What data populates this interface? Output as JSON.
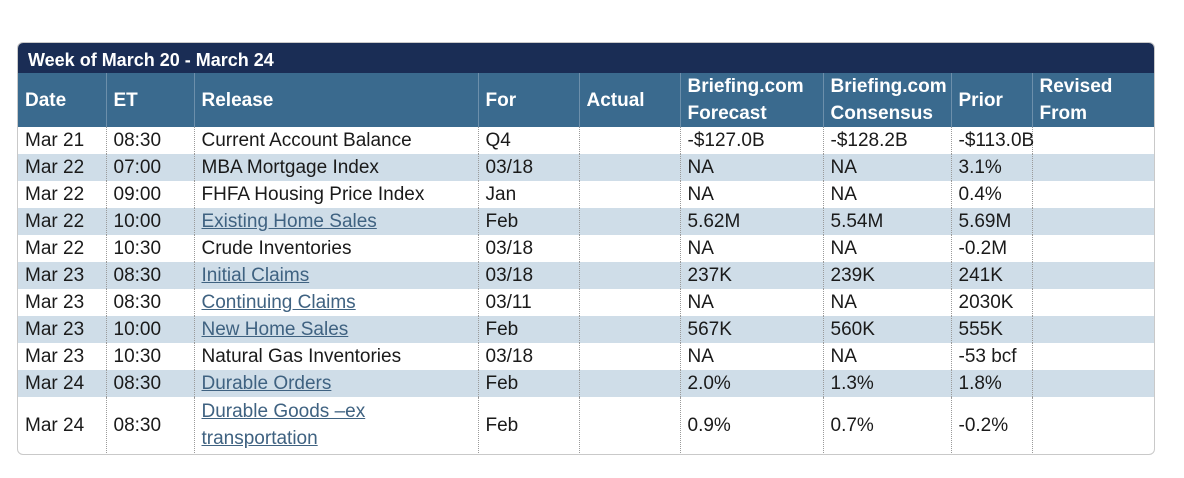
{
  "calendar": {
    "week_title": "Week of March 20 - March 24",
    "headers": {
      "date": "Date",
      "et": "ET",
      "release": "Release",
      "for": "For",
      "actual": "Actual",
      "forecast_line1": "Briefing.com",
      "forecast_line2": "Forecast",
      "consensus_line1": "Briefing.com",
      "consensus_line2": "Consensus",
      "prior": "Prior",
      "revised_line1": "Revised",
      "revised_line2": "From"
    },
    "rows": [
      {
        "date": "Mar 21",
        "et": "08:30",
        "release": "Current Account Balance",
        "link": false,
        "for": "Q4",
        "actual": "",
        "forecast": "-$127.0B",
        "consensus": "-$128.2B",
        "prior": "-$113.0B",
        "revised": ""
      },
      {
        "date": "Mar 22",
        "et": "07:00",
        "release": "MBA Mortgage Index",
        "link": false,
        "for": "03/18",
        "actual": "",
        "forecast": "NA",
        "consensus": "NA",
        "prior": "3.1%",
        "revised": ""
      },
      {
        "date": "Mar 22",
        "et": "09:00",
        "release": "FHFA Housing Price Index",
        "link": false,
        "for": "Jan",
        "actual": "",
        "forecast": "NA",
        "consensus": "NA",
        "prior": "0.4%",
        "revised": ""
      },
      {
        "date": "Mar 22",
        "et": "10:00",
        "release": "Existing Home Sales",
        "link": true,
        "for": "Feb",
        "actual": "",
        "forecast": "5.62M",
        "consensus": "5.54M",
        "prior": "5.69M",
        "revised": ""
      },
      {
        "date": "Mar 22",
        "et": "10:30",
        "release": "Crude Inventories",
        "link": false,
        "for": "03/18",
        "actual": "",
        "forecast": "NA",
        "consensus": "NA",
        "prior": "-0.2M",
        "revised": ""
      },
      {
        "date": "Mar 23",
        "et": "08:30",
        "release": "Initial Claims",
        "link": true,
        "for": "03/18",
        "actual": "",
        "forecast": "237K",
        "consensus": "239K",
        "prior": "241K",
        "revised": ""
      },
      {
        "date": "Mar 23",
        "et": "08:30",
        "release": "Continuing Claims",
        "link": true,
        "for": "03/11",
        "actual": "",
        "forecast": "NA",
        "consensus": "NA",
        "prior": "2030K",
        "revised": ""
      },
      {
        "date": "Mar 23",
        "et": "10:00",
        "release": "New Home Sales",
        "link": true,
        "for": "Feb",
        "actual": "",
        "forecast": "567K",
        "consensus": "560K",
        "prior": "555K",
        "revised": ""
      },
      {
        "date": "Mar 23",
        "et": "10:30",
        "release": "Natural Gas Inventories",
        "link": false,
        "for": "03/18",
        "actual": "",
        "forecast": "NA",
        "consensus": "NA",
        "prior": "-53 bcf",
        "revised": ""
      },
      {
        "date": "Mar 24",
        "et": "08:30",
        "release": "Durable Orders",
        "link": true,
        "for": "Feb",
        "actual": "",
        "forecast": "2.0%",
        "consensus": "1.3%",
        "prior": "1.8%",
        "revised": ""
      },
      {
        "date": "Mar 24",
        "et": "08:30",
        "release": "Durable Goods –ex transportation",
        "link": true,
        "for": "Feb",
        "actual": "",
        "forecast": "0.9%",
        "consensus": "0.7%",
        "prior": "-0.2%",
        "revised": ""
      }
    ]
  },
  "colors": {
    "week_bar": "#1a2d55",
    "header": "#3a6a8e",
    "alt_row": "#cfdde8",
    "link": "#3f6281"
  }
}
